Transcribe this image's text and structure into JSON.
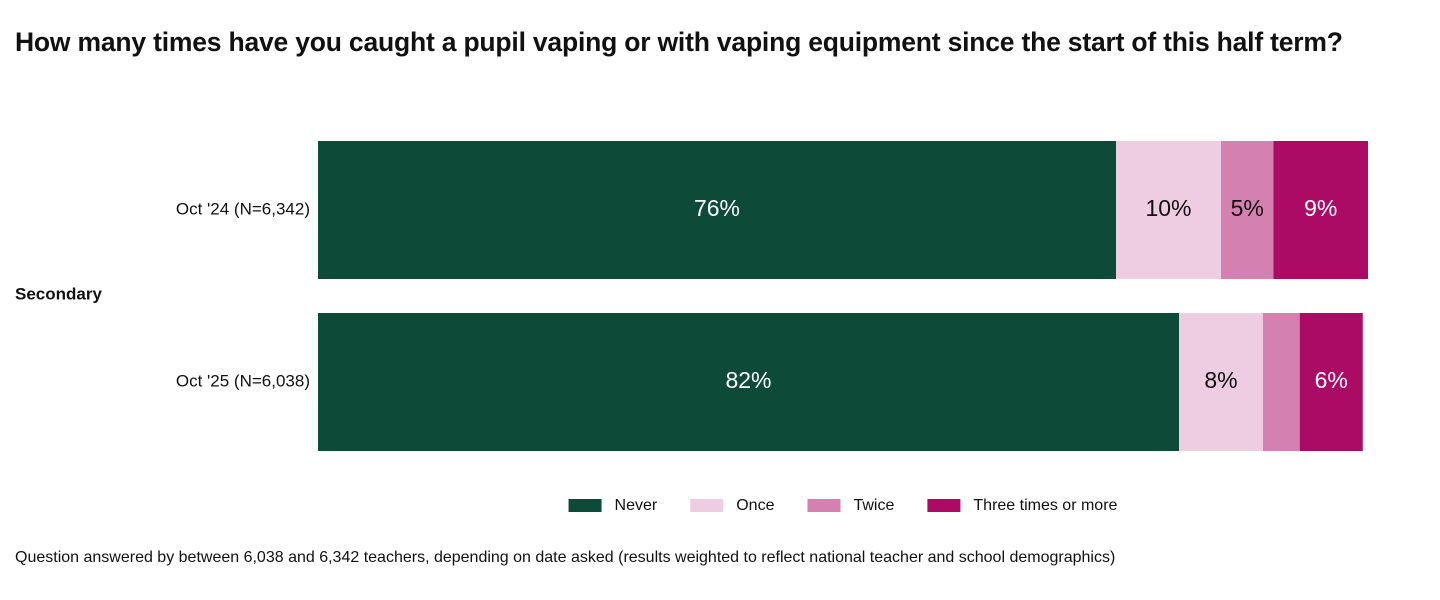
{
  "chart_data": {
    "type": "stacked-bar-horizontal",
    "title": "How many times have you caught a pupil vaping or with vaping equipment since the start of this half term?",
    "group": "Secondary",
    "categories": [
      "Oct '24 (N=6,342)",
      "Oct '25 (N=6,038)"
    ],
    "series": [
      {
        "name": "Never",
        "color": "#0d4a38",
        "values": [
          76,
          82
        ],
        "value_labels": [
          "76%",
          "82%"
        ]
      },
      {
        "name": "Once",
        "color": "#eecde2",
        "values": [
          10,
          8
        ],
        "value_labels": [
          "10%",
          "8%"
        ]
      },
      {
        "name": "Twice",
        "color": "#d480b0",
        "values": [
          5,
          3.5
        ],
        "value_labels": [
          "5%",
          null
        ]
      },
      {
        "name": "Three times or more",
        "color": "#ab0a65",
        "values": [
          9,
          6
        ],
        "value_labels": [
          "9%",
          "6%"
        ]
      }
    ],
    "xlim": [
      0,
      100
    ],
    "legend": "bottom",
    "note": "Question answered by between 6,038 and 6,342 teachers, depending on date asked (results weighted to reflect national teacher and school demographics)"
  }
}
